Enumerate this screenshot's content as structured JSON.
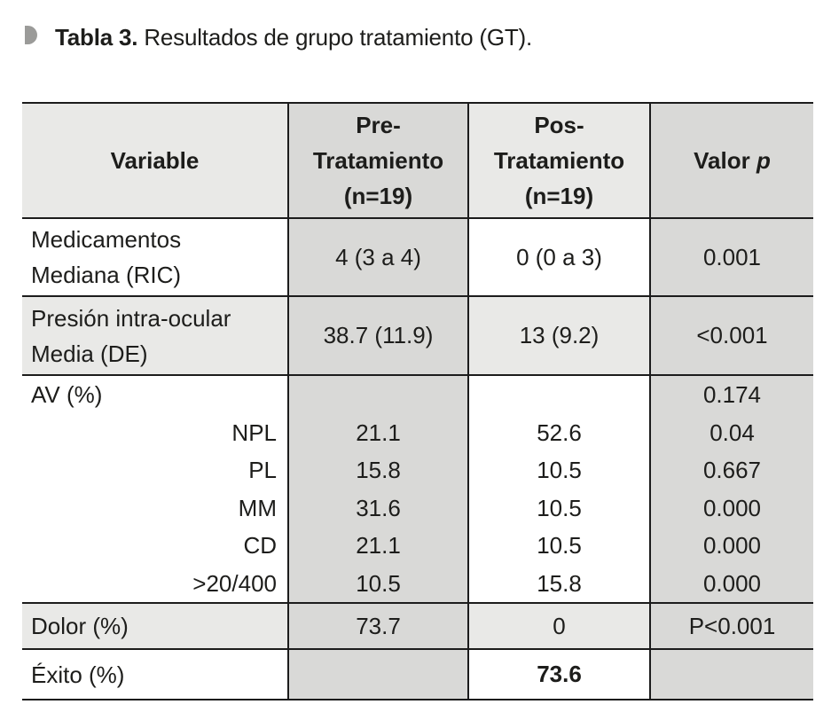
{
  "title": {
    "bullet_icon": "half-circle-marker",
    "label_bold": "Tabla 3.",
    "label_rest": " Resultados de grupo tratamiento (GT)."
  },
  "colors": {
    "border": "#1c1c1c",
    "cell_medium_gray": "#d9d9d7",
    "cell_light_gray": "#e9e9e7",
    "bullet_gray": "#9b9b99",
    "text": "#1d1d1b"
  },
  "table": {
    "header": {
      "variable": "Variable",
      "pre": "Pre-\nTratamiento\n(n=19)",
      "pos": "Pos-\nTratamiento\n(n=19)",
      "valor": "Valor",
      "p_symbol": "p"
    },
    "rows": {
      "medicamentos": {
        "name": "Medicamentos\nMediana (RIC)",
        "pre": "4 (3 a 4)",
        "pos": "0 (0 a 3)",
        "p": "0.001"
      },
      "presion": {
        "name": "Presión intra-ocular\nMedia (DE)",
        "pre": "38.7 (11.9)",
        "pos": "13 (9.2)",
        "p": "<0.001"
      },
      "av": {
        "name": "AV (%)",
        "p": "0.174",
        "sub_rows": [
          {
            "label": "NPL",
            "pre": "21.1",
            "pos": "52.6",
            "p": "0.04"
          },
          {
            "label": "PL",
            "pre": "15.8",
            "pos": "10.5",
            "p": "0.667"
          },
          {
            "label": "MM",
            "pre": "31.6",
            "pos": "10.5",
            "p": "0.000"
          },
          {
            "label": "CD",
            "pre": "21.1",
            "pos": "10.5",
            "p": "0.000"
          },
          {
            "label": ">20/400",
            "pre": "10.5",
            "pos": "15.8",
            "p": "0.000"
          }
        ]
      },
      "dolor": {
        "name": "Dolor (%)",
        "pre": "73.7",
        "pos": "0",
        "p": "P<0.001"
      },
      "exito": {
        "name": "Éxito (%)",
        "pre": "",
        "pos": "73.6",
        "p": ""
      }
    }
  }
}
